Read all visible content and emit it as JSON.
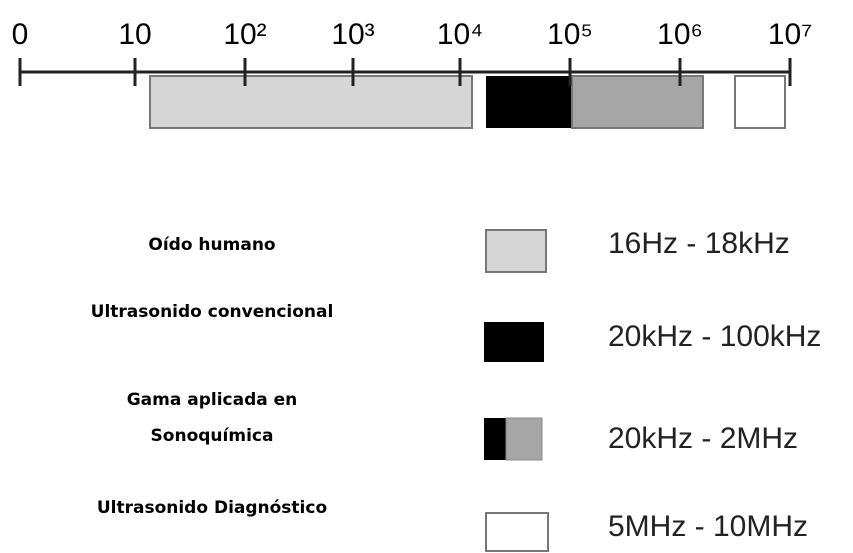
{
  "scale": {
    "ticks": [
      "0",
      "10",
      "10²",
      "10³",
      "10⁴",
      "10⁵",
      "10⁶",
      "10⁷"
    ]
  },
  "legend": [
    {
      "label": [
        "Oído humano"
      ],
      "range": "16Hz - 18kHz"
    },
    {
      "label": [
        "Ultrasonido convencional"
      ],
      "range": "20kHz - 100kHz"
    },
    {
      "label": [
        "Gama aplicada en",
        "Sonoquímica"
      ],
      "range": "20kHz - 2MHz"
    },
    {
      "label": [
        "Ultrasonido Diagnóstico"
      ],
      "range": "5MHz - 10MHz"
    }
  ]
}
